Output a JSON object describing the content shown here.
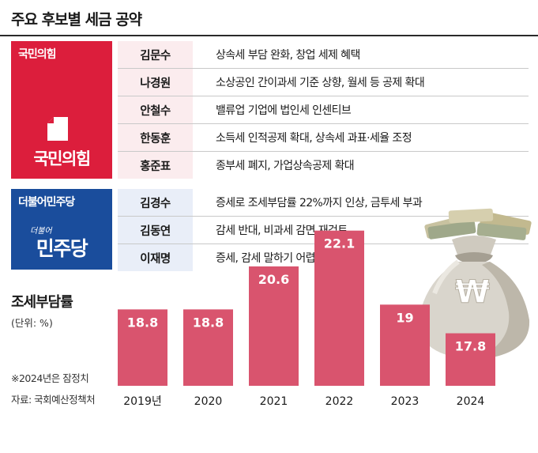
{
  "title": "주요 후보별 세금 공약",
  "parties": [
    {
      "name": "국민의힘",
      "logo_text": "국민의힘",
      "color": "#dc1e3c",
      "tint": "#fbecee",
      "candidates": [
        {
          "name": "김문수",
          "pledge": "상속세 부담 완화, 창업 세제 혜택"
        },
        {
          "name": "나경원",
          "pledge": "소상공인 간이과세 기준 상향, 월세 등 공제 확대"
        },
        {
          "name": "안철수",
          "pledge": "밸류업 기업에 법인세 인센티브"
        },
        {
          "name": "한동훈",
          "pledge": "소득세 인적공제 확대, 상속세 과표·세율 조정"
        },
        {
          "name": "홍준표",
          "pledge": "종부세 폐지, 가업상속공제 확대"
        }
      ]
    },
    {
      "name": "더불어민주당",
      "logo_text": "민주당",
      "logo_small": "더불어",
      "color": "#1a4d9c",
      "tint": "#e9eef8",
      "candidates": [
        {
          "name": "김경수",
          "pledge": "증세로 조세부담률 22%까지 인상, 금투세 부과"
        },
        {
          "name": "김동연",
          "pledge": "감세 반대, 비과세 감면 재검토"
        },
        {
          "name": "이재명",
          "pledge": "증세, 감세 말하기 어렵다"
        }
      ]
    }
  ],
  "bag_symbol": "₩",
  "chart_data": {
    "type": "bar",
    "title": "조세부담률",
    "unit_label": "(단위: %)",
    "categories": [
      "2019년",
      "2020",
      "2021",
      "2022",
      "2023",
      "2024"
    ],
    "values": [
      18.8,
      18.8,
      20.6,
      22.1,
      19,
      17.8
    ],
    "value_labels": [
      "18.8",
      "18.8",
      "20.6",
      "22.1",
      "19",
      "17.8"
    ],
    "bar_color": "#d9546e",
    "label_color": "#ffffff",
    "ylim": [
      0,
      25
    ],
    "footnote": "※2024년은 잠정치",
    "source": "자료: 국회예산정책처"
  }
}
